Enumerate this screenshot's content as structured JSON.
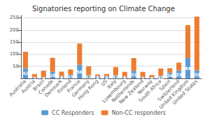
{
  "chart_data": {
    "type": "bar",
    "title": "Signatories reporting on Climate Change",
    "categories": [
      "Australia",
      "Austria",
      "Brazil",
      "Canada",
      "Denmark",
      "Finland",
      "France",
      "Germany",
      "Hong Kong",
      "US",
      "Italy",
      "Luxembourg",
      "Netherlands",
      "New Zealand",
      "Norway",
      "South Africa",
      "Spain",
      "Switzerland",
      "United Kingdom",
      "United States"
    ],
    "series": [
      {
        "name": "CC Responders",
        "color": "#5B9BD5",
        "data_labels": true,
        "values": [
          42,
          5,
          4,
          28,
          8,
          15,
          56,
          12,
          8,
          9,
          13,
          6,
          31,
          5,
          4,
          10,
          24,
          33,
          84,
          33
        ]
      },
      {
        "name": "Non-CC responders",
        "color": "#ED7D31",
        "values": [
          68,
          13,
          28,
          57,
          20,
          22,
          88,
          38,
          8,
          9,
          34,
          21,
          53,
          22,
          10,
          31,
          18,
          32,
          136,
          222
        ]
      }
    ],
    "stacked": true,
    "ylim": [
      0,
      260
    ],
    "yticks": [
      50,
      100,
      150,
      200,
      250
    ],
    "grid": true,
    "legend": "bottom"
  }
}
